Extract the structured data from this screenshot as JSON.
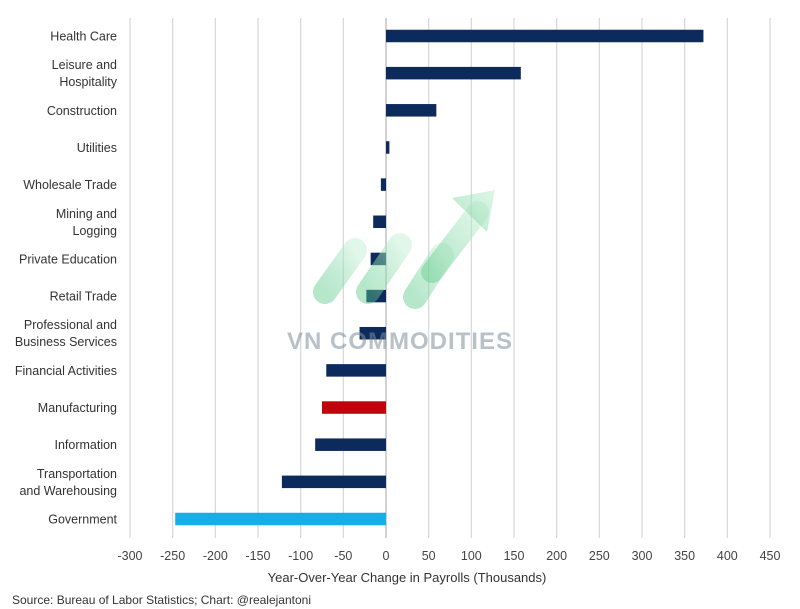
{
  "chart_data": {
    "type": "bar",
    "orientation": "horizontal",
    "categories": [
      [
        "Health Care"
      ],
      [
        "Leisure and",
        "Hospitality"
      ],
      [
        "Construction"
      ],
      [
        "Utilities"
      ],
      [
        "Wholesale Trade"
      ],
      [
        "Mining and",
        "Logging"
      ],
      [
        "Private Education"
      ],
      [
        "Retail Trade"
      ],
      [
        "Professional and",
        "Business Services"
      ],
      [
        "Financial Activities"
      ],
      [
        "Manufacturing"
      ],
      [
        "Information"
      ],
      [
        "Transportation",
        "and Warehousing"
      ],
      [
        "Government"
      ]
    ],
    "values": [
      372,
      158,
      59,
      4,
      -6,
      -15,
      -18,
      -23,
      -31,
      -70,
      -75,
      -83,
      -122,
      -247
    ],
    "bar_colors": [
      "#0d2a5c",
      "#0d2a5c",
      "#0d2a5c",
      "#0d2a5c",
      "#0d2a5c",
      "#0d2a5c",
      "#0d2a5c",
      "#0d2a5c",
      "#0d2a5c",
      "#0d2a5c",
      "#c0040c",
      "#0d2a5c",
      "#0d2a5c",
      "#13b0e6"
    ],
    "xlabel": "Year-Over-Year Change in Payrolls (Thousands)",
    "ylabel": "",
    "xlim": [
      -300,
      450
    ],
    "xticks": [
      -300,
      -250,
      -200,
      -150,
      -100,
      -50,
      0,
      50,
      100,
      150,
      200,
      250,
      300,
      350,
      400,
      450
    ],
    "grid": "vertical gridlines",
    "legend": "none",
    "source": "Source: Bureau of Labor Statistics; Chart: @realejantoni"
  },
  "watermark": {
    "text": "VN COMMODITIES",
    "colors": {
      "primary": "#7f8f9a",
      "green_start": "#5cc98a",
      "green_end": "#c9f0d8"
    }
  },
  "colors": {
    "grid": "#d9d9d9",
    "axis": "#bfbfbf",
    "navy": "#0d2a5c",
    "highlight_red": "#c0040c",
    "highlight_blue": "#13b0e6"
  }
}
